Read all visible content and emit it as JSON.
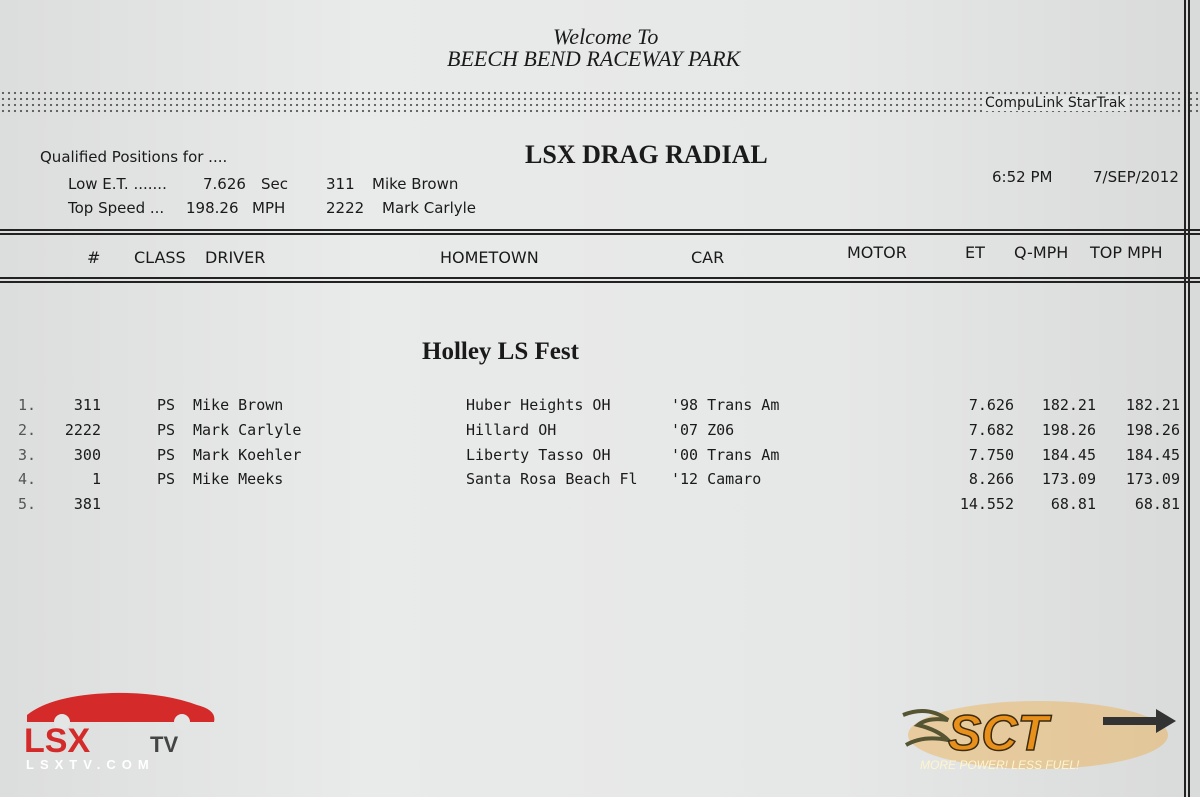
{
  "header": {
    "welcome": "Welcome To",
    "venue": "BEECH BEND RACEWAY PARK",
    "system": "CompuLink StarTrak",
    "event_class": "LSX DRAG RADIAL",
    "time": "6:52 PM",
    "date": "7/SEP/2012"
  },
  "qualified": {
    "label": "Qualified Positions for ....",
    "low_et_label": "Low E.T. .......",
    "low_et_value": "7.626",
    "low_et_unit": "Sec",
    "low_et_num": "311",
    "low_et_driver": "Mike Brown",
    "top_speed_label": "Top Speed ...",
    "top_speed_value": "198.26",
    "top_speed_unit": "MPH",
    "top_speed_num": "2222",
    "top_speed_driver": "Mark Carlyle"
  },
  "columns": {
    "num": "#",
    "class": "CLASS",
    "driver": "DRIVER",
    "hometown": "HOMETOWN",
    "car": "CAR",
    "motor": "MOTOR",
    "et": "ET",
    "qmph": "Q-MPH",
    "topmph": "TOP MPH"
  },
  "event": "Holley LS Fest",
  "rows": [
    {
      "pos": "1.",
      "num": "311",
      "class": "PS",
      "driver": "Mike Brown",
      "hometown": "Huber Heights OH",
      "car": "'98 Trans Am",
      "et": "7.626",
      "qmph": "182.21",
      "topmph": "182.21"
    },
    {
      "pos": "2.",
      "num": "2222",
      "class": "PS",
      "driver": "Mark Carlyle",
      "hometown": "Hillard OH",
      "car": "'07 Z06",
      "et": "7.682",
      "qmph": "198.26",
      "topmph": "198.26"
    },
    {
      "pos": "3.",
      "num": "300",
      "class": "PS",
      "driver": "Mark Koehler",
      "hometown": "Liberty Tasso OH",
      "car": "'00 Trans Am",
      "et": "7.750",
      "qmph": "184.45",
      "topmph": "184.45"
    },
    {
      "pos": "4.",
      "num": "1",
      "class": "PS",
      "driver": "Mike Meeks",
      "hometown": "Santa Rosa Beach Fl",
      "car": "'12 Camaro",
      "et": "8.266",
      "qmph": "173.09",
      "topmph": "173.09"
    },
    {
      "pos": "5.",
      "num": "381",
      "class": "",
      "driver": "",
      "hometown": "",
      "car": "",
      "et": "14.552",
      "qmph": "68.81",
      "topmph": "68.81"
    }
  ],
  "logos": {
    "lsx_main": "LSX",
    "lsx_tv": "TV",
    "lsx_url": "LSXTV.COM",
    "sct": "SCT",
    "sct_tagline": "MORE POWER! LESS FUEL!",
    "colors": {
      "lsx_red": "#d42a2a",
      "sct_orange": "#f0a020"
    }
  }
}
